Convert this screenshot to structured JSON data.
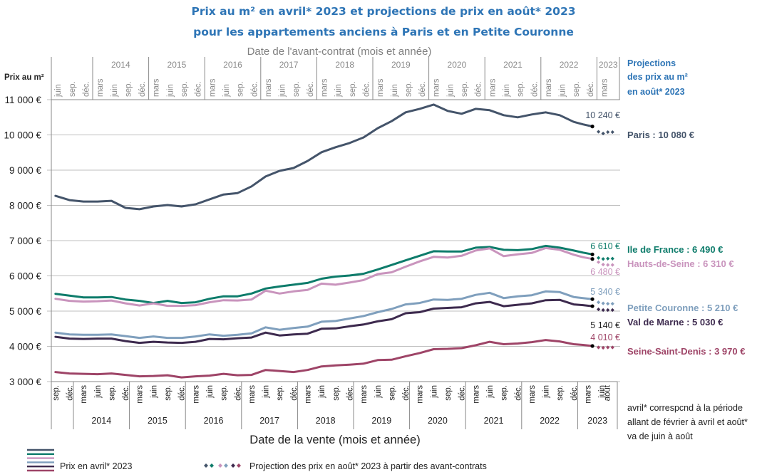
{
  "chart_data": {
    "type": "line",
    "title": [
      "Prix au m² en avril* 2023 et projections de prix en août* 2023",
      "pour les appartements anciens à Paris et en Petite Couronne"
    ],
    "ylabel": "Prix au m²",
    "xlabel_bottom": "Date de la vente (mois et année)",
    "xlabel_top": "Date de l'avant-contrat (mois et année)",
    "ylim": [
      3000,
      11000
    ],
    "yticks": [
      3000,
      4000,
      5000,
      6000,
      7000,
      8000,
      9000,
      10000,
      11000
    ],
    "ytick_labels": [
      "3 000 €",
      "4 000 €",
      "5 000 €",
      "6 000 €",
      "7 000 €",
      "8 000 €",
      "9 000 €",
      "10 000 €",
      "11 000 €"
    ],
    "grid": true,
    "x_bottom": {
      "month_labels": [
        "sep.",
        "déc.",
        "mars",
        "juin",
        "sep.",
        "déc.",
        "mars",
        "juin",
        "sep.",
        "déc.",
        "mars",
        "juin",
        "sep.",
        "déc.",
        "mars",
        "juin",
        "sep.",
        "déc.",
        "mars",
        "juin",
        "sep.",
        "déc.",
        "mars",
        "juin",
        "sep.",
        "déc.",
        "mars",
        "juin",
        "sep.",
        "déc.",
        "mars",
        "juin",
        "sep.",
        "déc.",
        "mars",
        "juin",
        "sep.",
        "déc.",
        "mars",
        "juin",
        "août"
      ],
      "month_index": [
        8,
        11,
        14,
        17,
        20,
        23,
        26,
        29,
        32,
        35,
        38,
        41,
        44,
        47,
        50,
        53,
        56,
        59,
        62,
        65,
        68,
        71,
        74,
        77,
        80,
        83,
        86,
        89,
        92,
        95,
        98,
        101,
        104,
        107,
        110,
        113,
        116,
        119,
        122,
        125,
        127
      ],
      "years": [
        "2014",
        "2015",
        "2016",
        "2017",
        "2018",
        "2019",
        "2020",
        "2021",
        "2022",
        "2023"
      ]
    },
    "x_top": {
      "month_labels": [
        "juin",
        "sep.",
        "déc.",
        "mars",
        "juin",
        "sep.",
        "déc.",
        "mars",
        "juin",
        "sep.",
        "déc.",
        "mars",
        "juin",
        "sep.",
        "déc.",
        "mars",
        "juin",
        "sep.",
        "déc.",
        "mars",
        "juin",
        "sep.",
        "déc.",
        "mars",
        "juin",
        "sep.",
        "déc.",
        "mars",
        "juin",
        "sep.",
        "déc.",
        "mars",
        "juin",
        "sep.",
        "déc.",
        "mars",
        "juin",
        "sep.",
        "déc.",
        "mars"
      ],
      "month_index": [
        5,
        8,
        11,
        14,
        17,
        20,
        23,
        26,
        29,
        32,
        35,
        38,
        41,
        44,
        47,
        50,
        53,
        56,
        59,
        62,
        65,
        68,
        71,
        74,
        77,
        80,
        83,
        86,
        89,
        92,
        95,
        98,
        101,
        104,
        107,
        110,
        113,
        116,
        119,
        122
      ],
      "years": [
        "2014",
        "2015",
        "2016",
        "2017",
        "2018",
        "2019",
        "2020",
        "2021",
        "2022",
        "2023"
      ]
    },
    "x_month_index_note": "months counted from Jan 2013 = 0",
    "x": [
      8,
      11,
      14,
      17,
      20,
      23,
      26,
      29,
      32,
      35,
      38,
      41,
      44,
      47,
      50,
      53,
      56,
      59,
      62,
      65,
      68,
      71,
      74,
      77,
      80,
      83,
      86,
      89,
      92,
      95,
      98,
      101,
      104,
      107,
      110,
      113,
      116,
      119,
      121,
      123
    ],
    "series": [
      {
        "name": "Paris",
        "color": "#44546a",
        "values": [
          8270,
          8150,
          8110,
          8110,
          8130,
          7930,
          7890,
          7970,
          8010,
          7970,
          8030,
          8170,
          8310,
          8350,
          8540,
          8820,
          8980,
          9060,
          9260,
          9510,
          9650,
          9770,
          9930,
          10190,
          10390,
          10640,
          10740,
          10860,
          10680,
          10600,
          10740,
          10700,
          10560,
          10500,
          10580,
          10640,
          10560,
          10370,
          10300,
          10240
        ],
        "end_value_label": "10 240 €",
        "projection": [
          10090,
          10040,
          10080,
          10080
        ],
        "projection_label": "Paris : 10 080 €"
      },
      {
        "name": "Ile de France",
        "color": "#0e7c6b",
        "values": [
          5490,
          5440,
          5390,
          5390,
          5400,
          5330,
          5290,
          5230,
          5290,
          5230,
          5250,
          5350,
          5420,
          5420,
          5500,
          5640,
          5700,
          5750,
          5800,
          5920,
          5980,
          6010,
          6060,
          6180,
          6310,
          6440,
          6570,
          6700,
          6690,
          6690,
          6800,
          6820,
          6740,
          6730,
          6760,
          6850,
          6800,
          6720,
          6660,
          6610
        ],
        "end_value_label": "6 610 €",
        "projection": [
          6510,
          6480,
          6490,
          6490
        ],
        "projection_label": "Ile de France : 6 490 €"
      },
      {
        "name": "Hauts-de-Seine",
        "color": "#c994bd",
        "values": [
          5350,
          5290,
          5270,
          5280,
          5300,
          5220,
          5160,
          5220,
          5150,
          5150,
          5170,
          5250,
          5310,
          5300,
          5330,
          5580,
          5500,
          5560,
          5600,
          5780,
          5750,
          5810,
          5880,
          6050,
          6100,
          6260,
          6410,
          6540,
          6520,
          6570,
          6720,
          6780,
          6560,
          6610,
          6650,
          6790,
          6740,
          6600,
          6530,
          6480
        ],
        "end_value_label": "6 480 €",
        "projection": [
          6390,
          6320,
          6310,
          6310
        ],
        "projection_label": "Hauts-de-Seine : 6 310 €"
      },
      {
        "name": "Petite Couronne",
        "color": "#7f9fbd",
        "values": [
          4390,
          4340,
          4330,
          4330,
          4340,
          4290,
          4240,
          4280,
          4240,
          4240,
          4280,
          4340,
          4300,
          4330,
          4370,
          4540,
          4470,
          4520,
          4560,
          4700,
          4720,
          4790,
          4860,
          4970,
          5060,
          5190,
          5230,
          5330,
          5320,
          5350,
          5460,
          5520,
          5370,
          5420,
          5450,
          5560,
          5540,
          5400,
          5370,
          5340
        ],
        "end_value_label": "5 340 €",
        "projection": [
          5250,
          5220,
          5210,
          5210
        ],
        "projection_label": "Petite Couronne : 5 210 €"
      },
      {
        "name": "Val de Marne",
        "color": "#3d2a4e",
        "values": [
          4270,
          4220,
          4210,
          4220,
          4220,
          4150,
          4100,
          4130,
          4110,
          4100,
          4130,
          4210,
          4200,
          4230,
          4250,
          4390,
          4310,
          4340,
          4360,
          4500,
          4510,
          4570,
          4620,
          4710,
          4770,
          4940,
          4970,
          5070,
          5090,
          5110,
          5220,
          5260,
          5140,
          5180,
          5220,
          5310,
          5320,
          5190,
          5170,
          5140
        ],
        "end_value_label": "5 140 €",
        "projection": [
          5050,
          5030,
          5030,
          5030
        ],
        "projection_label": "Val de Marne : 5 030 €"
      },
      {
        "name": "Seine-Saint-Denis",
        "color": "#9e4467",
        "values": [
          3270,
          3230,
          3220,
          3210,
          3230,
          3190,
          3150,
          3160,
          3180,
          3120,
          3150,
          3170,
          3220,
          3180,
          3190,
          3330,
          3300,
          3270,
          3330,
          3430,
          3460,
          3480,
          3510,
          3610,
          3620,
          3720,
          3810,
          3920,
          3930,
          3950,
          4030,
          4130,
          4060,
          4080,
          4120,
          4180,
          4140,
          4060,
          4040,
          4010
        ],
        "end_value_label": "4 010 €",
        "projection": [
          3970,
          3960,
          3970,
          3970
        ],
        "projection_label": "Seine-Saint-Denis : 3 970 €"
      }
    ],
    "projection_x": [
      124,
      125,
      126,
      127
    ],
    "projection_header": [
      "Projections",
      "des prix au m²",
      "en août* 2023"
    ],
    "note": [
      "avril* correspcnd à la période",
      "allant de février à avril et août*",
      "va de juin à août"
    ],
    "legend": {
      "placement": "bottom",
      "line_label": "Prix en avril* 2023",
      "diamond_label": "Projection des prix en août* 2023 à partir des avant-contrats"
    }
  }
}
